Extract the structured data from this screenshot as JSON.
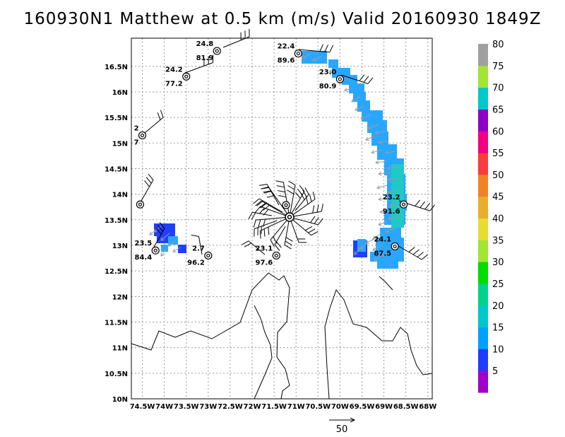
{
  "title": "160930N1 Matthew at 0.5 km (m/s) Valid 20160930 1849Z",
  "x_axis_labels": [
    "74.5W",
    "74W",
    "73.5W",
    "73W",
    "72.5W",
    "72W",
    "71.5W",
    "71W",
    "70.5W",
    "70W",
    "69.5W",
    "69W",
    "68.5W",
    "68W"
  ],
  "y_axis_labels": [
    "10N",
    "10.5N",
    "11N",
    "11.5N",
    "12N",
    "12.5N",
    "13N",
    "13.5N",
    "14N",
    "14.5N",
    "15N",
    "15.5N",
    "16N",
    "16.5N"
  ],
  "colorbar": {
    "labels": [
      "5",
      "10",
      "15",
      "20",
      "25",
      "30",
      "35",
      "40",
      "45",
      "50",
      "55",
      "60",
      "65",
      "70",
      "75",
      "80"
    ],
    "colors": [
      "#a000c8",
      "#1e3cff",
      "#00a0ff",
      "#00c8c8",
      "#00d28c",
      "#00dc00",
      "#a0e632",
      "#e6dc32",
      "#e6af2d",
      "#f08228",
      "#fa3c3c",
      "#f00082",
      "#8c00c8",
      "#00c8c8",
      "#a0e632",
      "#a0a0a0"
    ]
  },
  "reference_vector_label": "50",
  "stations": [
    {
      "id": "s1",
      "lon": -72.8,
      "lat": 16.8,
      "top": "24.8",
      "bottom": "81.9"
    },
    {
      "id": "s2",
      "lon": -73.5,
      "lat": 16.3,
      "top": "24.2",
      "bottom": "77.2"
    },
    {
      "id": "s3",
      "lon": -70.95,
      "lat": 16.75,
      "top": "22.4",
      "bottom": "89.6"
    },
    {
      "id": "s4",
      "lon": -70.0,
      "lat": 16.25,
      "top": "23.0",
      "bottom": "80.9"
    },
    {
      "id": "s5",
      "lon": -74.5,
      "lat": 15.15,
      "top": "2",
      "bottom": "7"
    },
    {
      "id": "s6",
      "lon": -74.55,
      "lat": 13.8,
      "top": "",
      "bottom": ""
    },
    {
      "id": "s7",
      "lon": -74.2,
      "lat": 12.9,
      "top": "23.5",
      "bottom": "84.4"
    },
    {
      "id": "s8",
      "lon": -73.0,
      "lat": 12.8,
      "top": "2.7",
      "bottom": "96.2"
    },
    {
      "id": "s9",
      "lon": -71.45,
      "lat": 12.8,
      "top": "23.1",
      "bottom": "97.6"
    },
    {
      "id": "s10",
      "lon": -68.55,
      "lat": 13.8,
      "top": "23.2",
      "bottom": "91.6"
    },
    {
      "id": "s11",
      "lon": -68.75,
      "lat": 12.98,
      "top": "24.1",
      "bottom": "87.5"
    }
  ]
}
